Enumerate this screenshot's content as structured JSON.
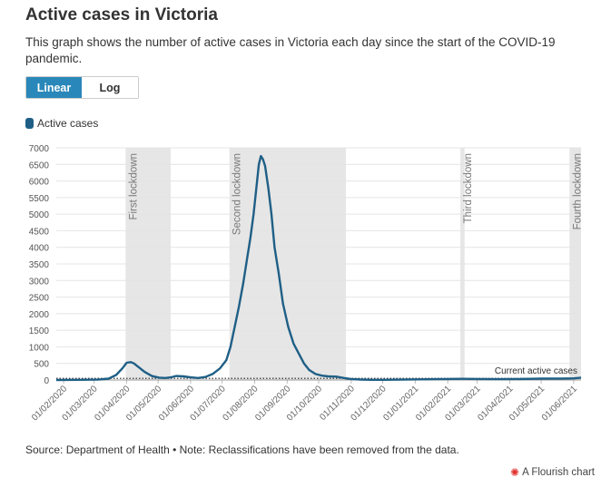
{
  "header": {
    "title": "Active cases in Victoria",
    "subtitle": "This graph shows the number of active cases in Victoria each day since the start of the COVID-19 pandemic."
  },
  "toggle": {
    "linear_label": "Linear",
    "log_label": "Log",
    "selected": "Linear"
  },
  "footer": {
    "source": "Source: Department of Health • Note: Reclassifications have been removed from the data.",
    "credit": "A Flourish chart"
  },
  "colors": {
    "accent": "#2a87b9",
    "series": "#1f5f86",
    "band": "#e6e6e6"
  },
  "chart_data": {
    "type": "line",
    "legend": "top-left",
    "grid": true,
    "ylim": [
      0,
      7000
    ],
    "yticks": [
      0,
      500,
      1000,
      1500,
      2000,
      2500,
      3000,
      3500,
      4000,
      4500,
      5000,
      5500,
      6000,
      6500,
      7000
    ],
    "xlim": [
      "2020-01-25",
      "2021-06-08"
    ],
    "xtick_labels": [
      "01/02/2020",
      "01/03/2020",
      "01/04/2020",
      "01/05/2020",
      "01/06/2020",
      "01/07/2020",
      "01/08/2020",
      "01/09/2020",
      "01/10/2020",
      "01/11/2020",
      "01/12/2020",
      "01/01/2021",
      "01/02/2021",
      "01/03/2021",
      "01/04/2021",
      "01/05/2021",
      "01/06/2021"
    ],
    "xtick_dates": [
      "2020-02-01",
      "2020-03-01",
      "2020-04-01",
      "2020-05-01",
      "2020-06-01",
      "2020-07-01",
      "2020-08-01",
      "2020-09-01",
      "2020-10-01",
      "2020-11-01",
      "2020-12-01",
      "2021-01-01",
      "2021-02-01",
      "2021-03-01",
      "2021-04-01",
      "2021-05-01",
      "2021-06-01"
    ],
    "bands": [
      {
        "label": "First lockdown",
        "start": "2020-03-31",
        "end": "2020-05-13"
      },
      {
        "label": "Second lockdown",
        "start": "2020-07-08",
        "end": "2020-10-27"
      },
      {
        "label": "Third lockdown",
        "start": "2021-02-13",
        "end": "2021-02-17"
      },
      {
        "label": "Fourth lockdown",
        "start": "2021-05-28",
        "end": "2021-06-08"
      }
    ],
    "reference_line": {
      "label": "Current active cases",
      "value": 50
    },
    "series": [
      {
        "name": "Active cases",
        "points": [
          [
            "2020-01-25",
            0
          ],
          [
            "2020-02-15",
            5
          ],
          [
            "2020-03-05",
            10
          ],
          [
            "2020-03-15",
            40
          ],
          [
            "2020-03-22",
            150
          ],
          [
            "2020-03-28",
            350
          ],
          [
            "2020-04-01",
            520
          ],
          [
            "2020-04-05",
            540
          ],
          [
            "2020-04-08",
            500
          ],
          [
            "2020-04-12",
            400
          ],
          [
            "2020-04-18",
            250
          ],
          [
            "2020-04-25",
            120
          ],
          [
            "2020-05-02",
            70
          ],
          [
            "2020-05-08",
            60
          ],
          [
            "2020-05-13",
            80
          ],
          [
            "2020-05-18",
            120
          ],
          [
            "2020-05-25",
            110
          ],
          [
            "2020-06-01",
            80
          ],
          [
            "2020-06-08",
            60
          ],
          [
            "2020-06-15",
            90
          ],
          [
            "2020-06-22",
            180
          ],
          [
            "2020-06-29",
            350
          ],
          [
            "2020-07-05",
            600
          ],
          [
            "2020-07-09",
            1000
          ],
          [
            "2020-07-13",
            1600
          ],
          [
            "2020-07-17",
            2200
          ],
          [
            "2020-07-21",
            2900
          ],
          [
            "2020-07-25",
            3700
          ],
          [
            "2020-07-28",
            4300
          ],
          [
            "2020-07-31",
            5000
          ],
          [
            "2020-08-03",
            5900
          ],
          [
            "2020-08-05",
            6500
          ],
          [
            "2020-08-07",
            6750
          ],
          [
            "2020-08-09",
            6650
          ],
          [
            "2020-08-11",
            6450
          ],
          [
            "2020-08-14",
            5800
          ],
          [
            "2020-08-17",
            5000
          ],
          [
            "2020-08-20",
            4000
          ],
          [
            "2020-08-24",
            3200
          ],
          [
            "2020-08-28",
            2300
          ],
          [
            "2020-09-02",
            1600
          ],
          [
            "2020-09-07",
            1100
          ],
          [
            "2020-09-12",
            800
          ],
          [
            "2020-09-17",
            500
          ],
          [
            "2020-09-22",
            300
          ],
          [
            "2020-09-28",
            180
          ],
          [
            "2020-10-04",
            130
          ],
          [
            "2020-10-10",
            110
          ],
          [
            "2020-10-18",
            100
          ],
          [
            "2020-10-25",
            60
          ],
          [
            "2020-11-01",
            30
          ],
          [
            "2020-11-10",
            15
          ],
          [
            "2020-11-20",
            5
          ],
          [
            "2020-12-01",
            5
          ],
          [
            "2020-12-20",
            10
          ],
          [
            "2021-01-05",
            20
          ],
          [
            "2021-01-20",
            25
          ],
          [
            "2021-02-01",
            30
          ],
          [
            "2021-02-15",
            35
          ],
          [
            "2021-03-01",
            30
          ],
          [
            "2021-03-20",
            25
          ],
          [
            "2021-04-10",
            30
          ],
          [
            "2021-05-01",
            40
          ],
          [
            "2021-05-20",
            45
          ],
          [
            "2021-06-01",
            50
          ],
          [
            "2021-06-08",
            70
          ]
        ]
      }
    ]
  }
}
